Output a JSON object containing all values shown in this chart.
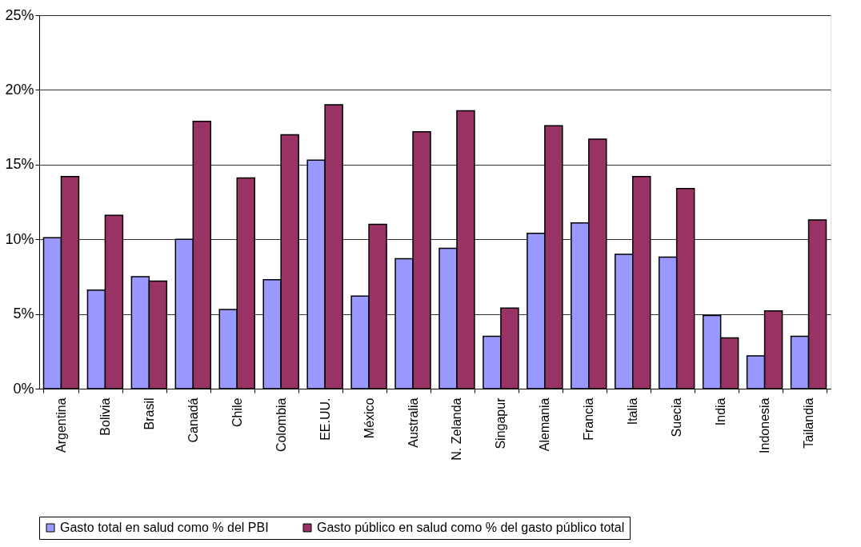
{
  "chart_data": {
    "type": "bar",
    "categories": [
      "Argentina",
      "Bolivia",
      "Brasil",
      "Canadá",
      "Chile",
      "Colombia",
      "EE.UU.",
      "México",
      "Australia",
      "N. Zelanda",
      "Singapur",
      "Alemania",
      "Francia",
      "Italia",
      "Suecia",
      "India",
      "Indonesia",
      "Tailandia"
    ],
    "series": [
      {
        "name": "Gasto total en salud como % del PBI",
        "color": "#9999ff",
        "values": [
          10.1,
          6.6,
          7.5,
          10.0,
          5.3,
          7.3,
          15.3,
          6.2,
          8.7,
          9.4,
          3.5,
          10.4,
          11.1,
          9.0,
          8.8,
          4.9,
          2.2,
          3.5
        ]
      },
      {
        "name": "Gasto público en salud como % del gasto público total",
        "color": "#993366",
        "values": [
          14.2,
          11.6,
          7.2,
          17.9,
          14.1,
          17.0,
          19.0,
          11.0,
          17.2,
          18.6,
          5.4,
          17.6,
          16.7,
          14.2,
          13.4,
          3.4,
          5.2,
          11.3
        ]
      }
    ],
    "ylim": [
      0,
      25
    ],
    "yticks": [
      {
        "value": 0,
        "label": "0%"
      },
      {
        "value": 5,
        "label": "5%"
      },
      {
        "value": 10,
        "label": "10%"
      },
      {
        "value": 15,
        "label": "15%"
      },
      {
        "value": 20,
        "label": "20%"
      },
      {
        "value": 25,
        "label": "25%"
      }
    ],
    "grid": "y",
    "legend": "bottom"
  }
}
